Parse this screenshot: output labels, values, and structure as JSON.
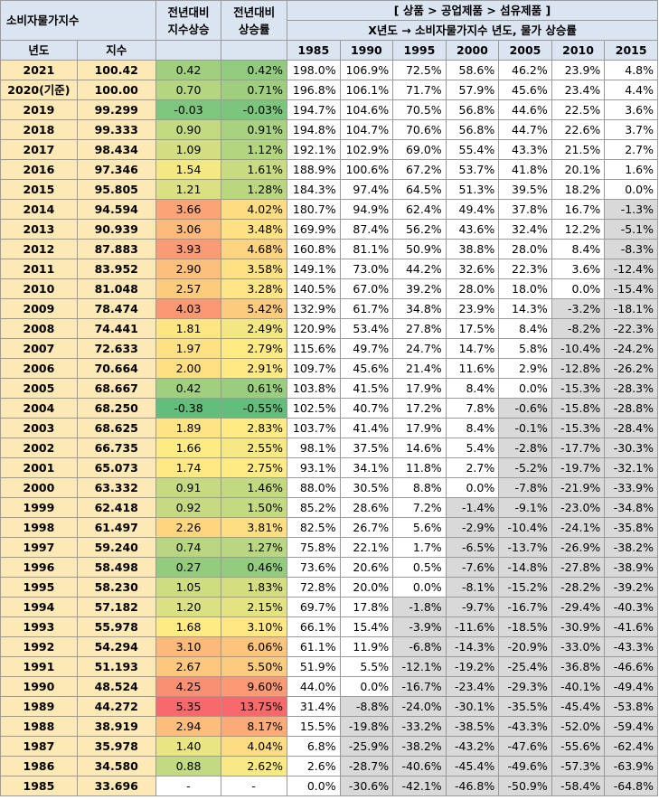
{
  "header": {
    "cpi_title": "소비자물가지수",
    "col_yoy_index": "전년대비\n지수상승",
    "col_yoy_rate": "전년대비\n상승률",
    "category_path": "[ 상품 > 공업제품 > 섬유제품 ]",
    "matrix_title": "X년도 → 소비자물가지수 년도, 물가 상승률",
    "year_label": "년도",
    "index_label": "지수",
    "base_years": [
      "1985",
      "1990",
      "1995",
      "2000",
      "2005",
      "2010",
      "2015"
    ]
  },
  "colors": {
    "header_bg": "#dbe5f1",
    "year_bg": "#fde9b6",
    "negative_bg": "#d9d9d9",
    "scale_low": "#63be7b",
    "scale_mid": "#ffeb84",
    "scale_high": "#f8696b"
  },
  "rows": [
    {
      "year": "2021",
      "index": "100.42",
      "diff": "0.42",
      "rate": "0.42%",
      "growth": [
        "198.0%",
        "106.9%",
        "72.5%",
        "58.6%",
        "46.2%",
        "23.9%",
        "4.8%"
      ]
    },
    {
      "year": "2020(기준)",
      "index": "100.00",
      "diff": "0.70",
      "rate": "0.71%",
      "growth": [
        "196.8%",
        "106.1%",
        "71.7%",
        "57.9%",
        "45.6%",
        "23.4%",
        "4.4%"
      ]
    },
    {
      "year": "2019",
      "index": "99.299",
      "diff": "-0.03",
      "rate": "-0.03%",
      "growth": [
        "194.7%",
        "104.6%",
        "70.5%",
        "56.8%",
        "44.6%",
        "22.5%",
        "3.6%"
      ]
    },
    {
      "year": "2018",
      "index": "99.333",
      "diff": "0.90",
      "rate": "0.91%",
      "growth": [
        "194.8%",
        "104.7%",
        "70.6%",
        "56.8%",
        "44.7%",
        "22.6%",
        "3.7%"
      ]
    },
    {
      "year": "2017",
      "index": "98.434",
      "diff": "1.09",
      "rate": "1.12%",
      "growth": [
        "192.1%",
        "102.9%",
        "69.0%",
        "55.4%",
        "43.3%",
        "21.5%",
        "2.7%"
      ]
    },
    {
      "year": "2016",
      "index": "97.346",
      "diff": "1.54",
      "rate": "1.61%",
      "growth": [
        "188.9%",
        "100.6%",
        "67.2%",
        "53.7%",
        "41.8%",
        "20.1%",
        "1.6%"
      ]
    },
    {
      "year": "2015",
      "index": "95.805",
      "diff": "1.21",
      "rate": "1.28%",
      "growth": [
        "184.3%",
        "97.4%",
        "64.5%",
        "51.3%",
        "39.5%",
        "18.2%",
        "0.0%"
      ]
    },
    {
      "year": "2014",
      "index": "94.594",
      "diff": "3.66",
      "rate": "4.02%",
      "growth": [
        "180.7%",
        "94.9%",
        "62.4%",
        "49.4%",
        "37.8%",
        "16.7%",
        "-1.3%"
      ]
    },
    {
      "year": "2013",
      "index": "90.939",
      "diff": "3.06",
      "rate": "3.48%",
      "growth": [
        "169.9%",
        "87.4%",
        "56.2%",
        "43.6%",
        "32.4%",
        "12.2%",
        "-5.1%"
      ]
    },
    {
      "year": "2012",
      "index": "87.883",
      "diff": "3.93",
      "rate": "4.68%",
      "growth": [
        "160.8%",
        "81.1%",
        "50.9%",
        "38.8%",
        "28.0%",
        "8.4%",
        "-8.3%"
      ]
    },
    {
      "year": "2011",
      "index": "83.952",
      "diff": "2.90",
      "rate": "3.58%",
      "growth": [
        "149.1%",
        "73.0%",
        "44.2%",
        "32.6%",
        "22.3%",
        "3.6%",
        "-12.4%"
      ]
    },
    {
      "year": "2010",
      "index": "81.048",
      "diff": "2.57",
      "rate": "3.28%",
      "growth": [
        "140.5%",
        "67.0%",
        "39.2%",
        "28.0%",
        "18.0%",
        "0.0%",
        "-15.4%"
      ]
    },
    {
      "year": "2009",
      "index": "78.474",
      "diff": "4.03",
      "rate": "5.42%",
      "growth": [
        "132.9%",
        "61.7%",
        "34.8%",
        "23.9%",
        "14.3%",
        "-3.2%",
        "-18.1%"
      ]
    },
    {
      "year": "2008",
      "index": "74.441",
      "diff": "1.81",
      "rate": "2.49%",
      "growth": [
        "120.9%",
        "53.4%",
        "27.8%",
        "17.5%",
        "8.4%",
        "-8.2%",
        "-22.3%"
      ]
    },
    {
      "year": "2007",
      "index": "72.633",
      "diff": "1.97",
      "rate": "2.79%",
      "growth": [
        "115.6%",
        "49.7%",
        "24.7%",
        "14.7%",
        "5.8%",
        "-10.4%",
        "-24.2%"
      ]
    },
    {
      "year": "2006",
      "index": "70.664",
      "diff": "2.00",
      "rate": "2.91%",
      "growth": [
        "109.7%",
        "45.6%",
        "21.4%",
        "11.6%",
        "2.9%",
        "-12.8%",
        "-26.2%"
      ]
    },
    {
      "year": "2005",
      "index": "68.667",
      "diff": "0.42",
      "rate": "0.61%",
      "growth": [
        "103.8%",
        "41.5%",
        "17.9%",
        "8.4%",
        "0.0%",
        "-15.3%",
        "-28.3%"
      ]
    },
    {
      "year": "2004",
      "index": "68.250",
      "diff": "-0.38",
      "rate": "-0.55%",
      "growth": [
        "102.5%",
        "40.7%",
        "17.2%",
        "7.8%",
        "-0.6%",
        "-15.8%",
        "-28.8%"
      ]
    },
    {
      "year": "2003",
      "index": "68.625",
      "diff": "1.89",
      "rate": "2.83%",
      "growth": [
        "103.7%",
        "41.4%",
        "17.9%",
        "8.4%",
        "-0.1%",
        "-15.3%",
        "-28.4%"
      ]
    },
    {
      "year": "2002",
      "index": "66.735",
      "diff": "1.66",
      "rate": "2.55%",
      "growth": [
        "98.1%",
        "37.5%",
        "14.6%",
        "5.4%",
        "-2.8%",
        "-17.7%",
        "-30.3%"
      ]
    },
    {
      "year": "2001",
      "index": "65.073",
      "diff": "1.74",
      "rate": "2.75%",
      "growth": [
        "93.1%",
        "34.1%",
        "11.8%",
        "2.7%",
        "-5.2%",
        "-19.7%",
        "-32.1%"
      ]
    },
    {
      "year": "2000",
      "index": "63.332",
      "diff": "0.91",
      "rate": "1.46%",
      "growth": [
        "88.0%",
        "30.5%",
        "8.8%",
        "0.0%",
        "-7.8%",
        "-21.9%",
        "-33.9%"
      ]
    },
    {
      "year": "1999",
      "index": "62.418",
      "diff": "0.92",
      "rate": "1.50%",
      "growth": [
        "85.2%",
        "28.6%",
        "7.2%",
        "-1.4%",
        "-9.1%",
        "-23.0%",
        "-34.8%"
      ]
    },
    {
      "year": "1998",
      "index": "61.497",
      "diff": "2.26",
      "rate": "3.81%",
      "growth": [
        "82.5%",
        "26.7%",
        "5.6%",
        "-2.9%",
        "-10.4%",
        "-24.1%",
        "-35.8%"
      ]
    },
    {
      "year": "1997",
      "index": "59.240",
      "diff": "0.74",
      "rate": "1.27%",
      "growth": [
        "75.8%",
        "22.1%",
        "1.7%",
        "-6.5%",
        "-13.7%",
        "-26.9%",
        "-38.2%"
      ]
    },
    {
      "year": "1996",
      "index": "58.498",
      "diff": "0.27",
      "rate": "0.46%",
      "growth": [
        "73.6%",
        "20.6%",
        "0.5%",
        "-7.6%",
        "-14.8%",
        "-27.8%",
        "-38.9%"
      ]
    },
    {
      "year": "1995",
      "index": "58.230",
      "diff": "1.05",
      "rate": "1.83%",
      "growth": [
        "72.8%",
        "20.0%",
        "0.0%",
        "-8.1%",
        "-15.2%",
        "-28.2%",
        "-39.2%"
      ]
    },
    {
      "year": "1994",
      "index": "57.182",
      "diff": "1.20",
      "rate": "2.15%",
      "growth": [
        "69.7%",
        "17.8%",
        "-1.8%",
        "-9.7%",
        "-16.7%",
        "-29.4%",
        "-40.3%"
      ]
    },
    {
      "year": "1993",
      "index": "55.978",
      "diff": "1.68",
      "rate": "3.10%",
      "growth": [
        "66.1%",
        "15.4%",
        "-3.9%",
        "-11.6%",
        "-18.5%",
        "-30.9%",
        "-41.6%"
      ]
    },
    {
      "year": "1992",
      "index": "54.294",
      "diff": "3.10",
      "rate": "6.06%",
      "growth": [
        "61.1%",
        "11.9%",
        "-6.8%",
        "-14.3%",
        "-20.9%",
        "-33.0%",
        "-43.3%"
      ]
    },
    {
      "year": "1991",
      "index": "51.193",
      "diff": "2.67",
      "rate": "5.50%",
      "growth": [
        "51.9%",
        "5.5%",
        "-12.1%",
        "-19.2%",
        "-25.4%",
        "-36.8%",
        "-46.6%"
      ]
    },
    {
      "year": "1990",
      "index": "48.524",
      "diff": "4.25",
      "rate": "9.60%",
      "growth": [
        "44.0%",
        "0.0%",
        "-16.7%",
        "-23.4%",
        "-29.3%",
        "-40.1%",
        "-49.4%"
      ]
    },
    {
      "year": "1989",
      "index": "44.272",
      "diff": "5.35",
      "rate": "13.75%",
      "growth": [
        "31.4%",
        "-8.8%",
        "-24.0%",
        "-30.1%",
        "-35.5%",
        "-45.4%",
        "-53.8%"
      ]
    },
    {
      "year": "1988",
      "index": "38.919",
      "diff": "2.94",
      "rate": "8.17%",
      "growth": [
        "15.5%",
        "-19.8%",
        "-33.2%",
        "-38.5%",
        "-43.3%",
        "-52.0%",
        "-59.4%"
      ]
    },
    {
      "year": "1987",
      "index": "35.978",
      "diff": "1.40",
      "rate": "4.04%",
      "growth": [
        "6.8%",
        "-25.9%",
        "-38.2%",
        "-43.2%",
        "-47.6%",
        "-55.6%",
        "-62.4%"
      ]
    },
    {
      "year": "1986",
      "index": "34.580",
      "diff": "0.88",
      "rate": "2.62%",
      "growth": [
        "2.6%",
        "-28.7%",
        "-40.6%",
        "-45.4%",
        "-49.6%",
        "-57.3%",
        "-63.9%"
      ]
    },
    {
      "year": "1985",
      "index": "33.696",
      "diff": "-",
      "rate": "-",
      "growth": [
        "0.0%",
        "-30.6%",
        "-42.1%",
        "-46.8%",
        "-50.9%",
        "-58.4%",
        "-64.8%"
      ]
    }
  ]
}
